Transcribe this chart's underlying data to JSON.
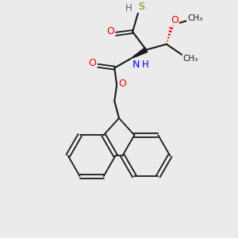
{
  "bg_color": "#ebebeb",
  "bond_color": "#1a1a1a",
  "atom_colors": {
    "S": "#808000",
    "O": "#ff0000",
    "N": "#0000ff",
    "C": "#1a1a1a",
    "H": "#606060"
  },
  "figsize": [
    3.0,
    3.0
  ],
  "dpi": 100
}
